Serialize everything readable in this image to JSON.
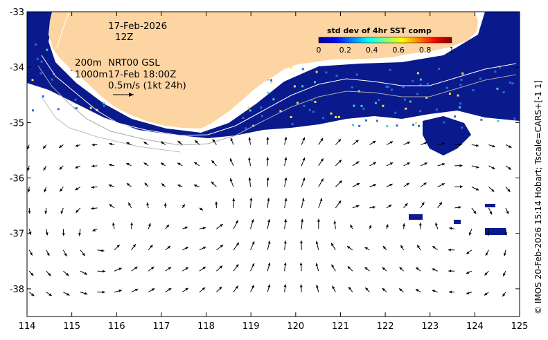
{
  "chart_data": {
    "type": "map",
    "x_ticks": [
      "114",
      "115",
      "116",
      "117",
      "118",
      "119",
      "120",
      "121",
      "122",
      "123",
      "124",
      "125"
    ],
    "y_ticks": [
      "-33",
      "-34",
      "-35",
      "-36",
      "-37",
      "-38"
    ],
    "lon_range": [
      114,
      125
    ],
    "lat_range": [
      -38.5,
      -33
    ],
    "annotations": {
      "date": "17-Feb-2026",
      "time": "12Z",
      "contour_200": "200m",
      "contour_1000": "1000m",
      "product": "NRT00 GSL",
      "valid_time": "17-Feb 18:00Z",
      "scale_label": "0.5m/s (1kt 24h)"
    },
    "colorbar": {
      "title": "std dev of 4hr SST comp",
      "ticks": [
        "0",
        "0.2",
        "0.4",
        "0.6",
        "0.8",
        "1"
      ],
      "range": [
        0,
        1
      ]
    },
    "copyright": "© IMOS 20-Feb-2026 15:14 Hobart; Tscale=CARS+[-1 1]"
  },
  "colors": {
    "land": "#fdd5a3",
    "sst_low": "#0a1a8c",
    "sst_mid": "#2a6bd4",
    "arrow": "#000000",
    "bathy_200": "#ffffff",
    "bathy_1000": "#aaaaaa"
  }
}
